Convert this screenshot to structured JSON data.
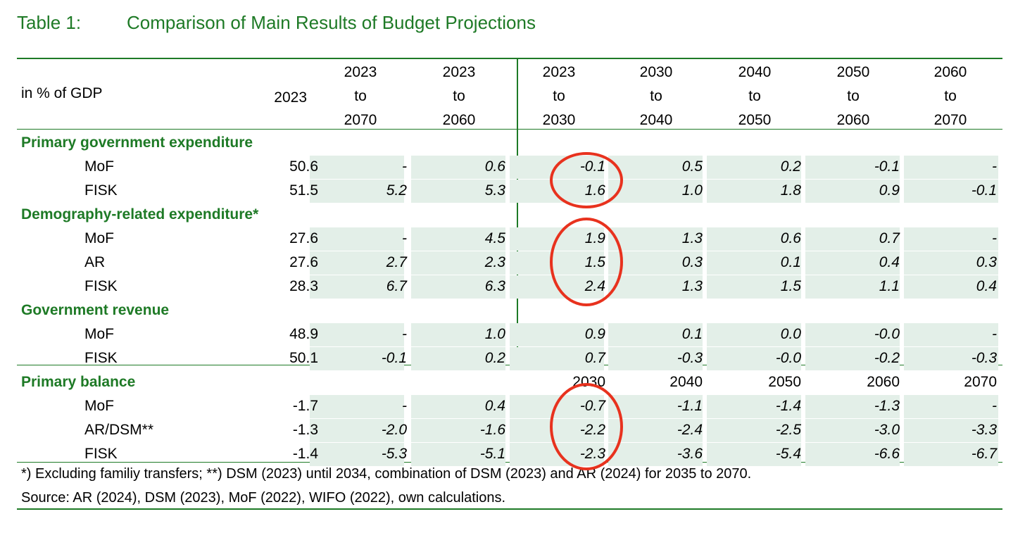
{
  "title": {
    "number": "Table 1:",
    "text": "Comparison of Main Results of Budget Projections"
  },
  "header": {
    "unit_label": "in % of GDP",
    "base_year": "2023",
    "columns": [
      {
        "from": "2023",
        "to_word": "to",
        "to": "2070"
      },
      {
        "from": "2023",
        "to_word": "to",
        "to": "2060"
      },
      {
        "from": "2023",
        "to_word": "to",
        "to": "2030"
      },
      {
        "from": "2030",
        "to_word": "to",
        "to": "2040"
      },
      {
        "from": "2040",
        "to_word": "to",
        "to": "2050"
      },
      {
        "from": "2050",
        "to_word": "to",
        "to": "2060"
      },
      {
        "from": "2060",
        "to_word": "to",
        "to": "2070"
      }
    ]
  },
  "sections": [
    {
      "title": "Primary government expenditure",
      "rows": [
        {
          "label": "MoF",
          "base": "50.6",
          "values": [
            "-",
            "0.6",
            "-0.1",
            "0.5",
            "0.2",
            "-0.1",
            "-"
          ]
        },
        {
          "label": "FISK",
          "base": "51.5",
          "values": [
            "5.2",
            "5.3",
            "1.6",
            "1.0",
            "1.8",
            "0.9",
            "-0.1"
          ]
        }
      ]
    },
    {
      "title": "Demography-related expenditure*",
      "rows": [
        {
          "label": "MoF",
          "base": "27.6",
          "values": [
            "-",
            "4.5",
            "1.9",
            "1.3",
            "0.6",
            "0.7",
            "-"
          ]
        },
        {
          "label": "AR",
          "base": "27.6",
          "values": [
            "2.7",
            "2.3",
            "1.5",
            "0.3",
            "0.1",
            "0.4",
            "0.3"
          ]
        },
        {
          "label": "FISK",
          "base": "28.3",
          "values": [
            "6.7",
            "6.3",
            "2.4",
            "1.3",
            "1.5",
            "1.1",
            "0.4"
          ]
        }
      ]
    },
    {
      "title": "Government revenue",
      "rows": [
        {
          "label": "MoF",
          "base": "48.9",
          "values": [
            "-",
            "1.0",
            "0.9",
            "0.1",
            "0.0",
            "-0.0",
            "-"
          ]
        },
        {
          "label": "FISK",
          "base": "50.1",
          "values": [
            "-0.1",
            "0.2",
            "0.7",
            "-0.3",
            "-0.0",
            "-0.2",
            "-0.3"
          ]
        }
      ]
    },
    {
      "title": "Primary balance",
      "year_headers": [
        "2030",
        "2040",
        "2050",
        "2060",
        "2070"
      ],
      "rows": [
        {
          "label": "MoF",
          "base": "-1.7",
          "values": [
            "-",
            "0.4",
            "-0.7",
            "-1.1",
            "-1.4",
            "-1.3",
            "-"
          ]
        },
        {
          "label": "AR/DSM**",
          "base": "-1.3",
          "values": [
            "-2.0",
            "-1.6",
            "-2.2",
            "-2.4",
            "-2.5",
            "-3.0",
            "-3.3"
          ]
        },
        {
          "label": "FISK",
          "base": "-1.4",
          "values": [
            "-5.3",
            "-5.1",
            "-2.3",
            "-3.6",
            "-5.4",
            "-6.6",
            "-6.7"
          ]
        }
      ]
    }
  ],
  "footnote": "*) Excluding familiy transfers; **) DSM (2023) until 2034, combination of DSM (2023) and AR (2024) for 2035 to 2070.",
  "source": "Source: AR (2024), DSM (2023), MoF (2022), WIFO (2022), own calculations.",
  "colors": {
    "accent": "#1e7a26",
    "shade": "#e3efe8",
    "annotation": "#e8321e"
  }
}
